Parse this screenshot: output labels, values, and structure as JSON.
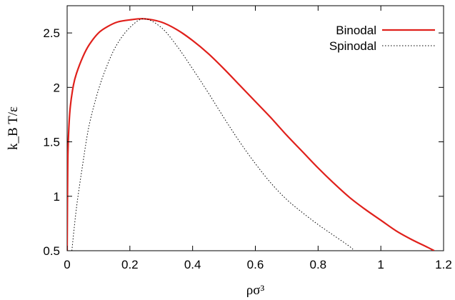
{
  "chart_data": {
    "type": "line",
    "xlabel": "ρσ³",
    "ylabel": "k_B T/ε",
    "xlim": [
      0,
      1.2
    ],
    "ylim": [
      0.5,
      2.75
    ],
    "x_ticks": [
      "0",
      "0.2",
      "0.4",
      "0.6",
      "0.8",
      "1",
      "1.2"
    ],
    "y_ticks": [
      "0.5",
      "1",
      "1.5",
      "2",
      "2.5"
    ],
    "grid": false,
    "legend_position": "top-right",
    "series": [
      {
        "name": "Binodal",
        "color": "#e0201b",
        "style": "solid",
        "x": [
          0.0,
          0.002,
          0.005,
          0.01,
          0.02,
          0.03,
          0.05,
          0.07,
          0.1,
          0.13,
          0.16,
          0.2,
          0.245,
          0.3,
          0.35,
          0.4,
          0.45,
          0.5,
          0.55,
          0.6,
          0.65,
          0.7,
          0.75,
          0.8,
          0.85,
          0.9,
          0.95,
          1.0,
          1.05,
          1.1,
          1.15,
          1.17
        ],
        "y": [
          0.5,
          1.3,
          1.6,
          1.82,
          2.02,
          2.13,
          2.28,
          2.39,
          2.5,
          2.56,
          2.6,
          2.62,
          2.63,
          2.6,
          2.53,
          2.43,
          2.31,
          2.17,
          2.02,
          1.87,
          1.72,
          1.56,
          1.41,
          1.26,
          1.12,
          0.99,
          0.88,
          0.78,
          0.68,
          0.6,
          0.53,
          0.5
        ]
      },
      {
        "name": "Spinodal",
        "color": "#000000",
        "style": "dotted",
        "x": [
          0.015,
          0.03,
          0.05,
          0.07,
          0.1,
          0.13,
          0.16,
          0.2,
          0.245,
          0.3,
          0.35,
          0.4,
          0.45,
          0.5,
          0.55,
          0.6,
          0.65,
          0.7,
          0.75,
          0.8,
          0.85,
          0.9,
          0.915
        ],
        "y": [
          0.5,
          0.9,
          1.3,
          1.65,
          1.98,
          2.22,
          2.4,
          2.55,
          2.63,
          2.55,
          2.38,
          2.17,
          1.95,
          1.72,
          1.5,
          1.3,
          1.12,
          0.97,
          0.85,
          0.74,
          0.64,
          0.54,
          0.5
        ]
      }
    ]
  }
}
